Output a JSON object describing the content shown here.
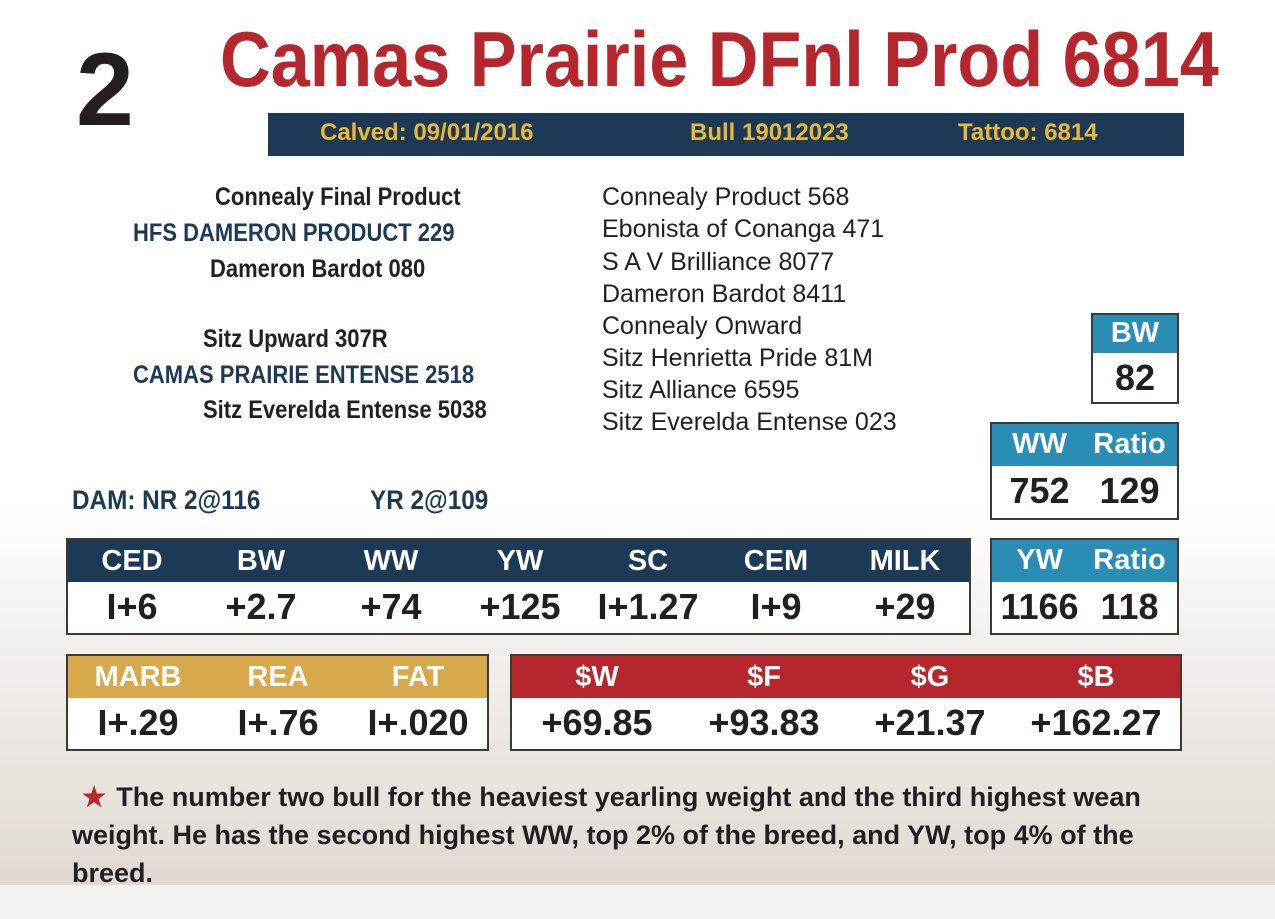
{
  "lot_number": "2",
  "title": "Camas Prairie DFnl Prod 6814",
  "info": {
    "calved": "Calved: 09/01/2016",
    "bull": "Bull 19012023",
    "tattoo": "Tattoo: 6814"
  },
  "pedigree_left": [
    "Connealy Final Product",
    "HFS DAMERON PRODUCT 229",
    "Dameron Bardot 080",
    "Sitz Upward 307R",
    "CAMAS PRAIRIE ENTENSE 2518",
    "Sitz Everelda Entense 5038"
  ],
  "pedigree_right": [
    "Connealy Product 568",
    "Ebonista of Conanga 471",
    "S A V Brilliance 8077",
    "Dameron Bardot 8411",
    "Connealy Onward",
    "Sitz Henrietta Pride 81M",
    "Sitz Alliance 6595",
    "Sitz Everelda Entense 023"
  ],
  "dam": {
    "nr": "DAM: NR 2@116",
    "yr": "YR 2@109"
  },
  "bw_box": {
    "label": "BW",
    "value": "82"
  },
  "ww_box": {
    "label": "WW",
    "ratio_label": "Ratio",
    "value": "752",
    "ratio": "129"
  },
  "yw_box": {
    "label": "YW",
    "ratio_label": "Ratio",
    "value": "1166",
    "ratio": "118"
  },
  "epd": {
    "headers": [
      "CED",
      "BW",
      "WW",
      "YW",
      "SC",
      "CEM",
      "MILK"
    ],
    "values": [
      "I+6",
      "+2.7",
      "+74",
      "+125",
      "I+1.27",
      "I+9",
      "+29"
    ]
  },
  "carcass": {
    "headers": [
      "MARB",
      "REA",
      "FAT"
    ],
    "values": [
      "I+.29",
      "I+.76",
      "I+.020"
    ]
  },
  "indexes": {
    "headers": [
      "$W",
      "$F",
      "$G",
      "$B"
    ],
    "values": [
      "+69.85",
      "+93.83",
      "+21.37",
      "+162.27"
    ]
  },
  "note": "The number two bull for the heaviest yearling weight and the third highest wean weight. He has the second highest WW, top 2% of the breed, and YW, top 4% of the breed.",
  "colors": {
    "navy": "#1c3a55",
    "red": "#b5272d",
    "gold": "#d7a94a",
    "teal": "#2a8db5",
    "yellow": "#e8b73c"
  }
}
